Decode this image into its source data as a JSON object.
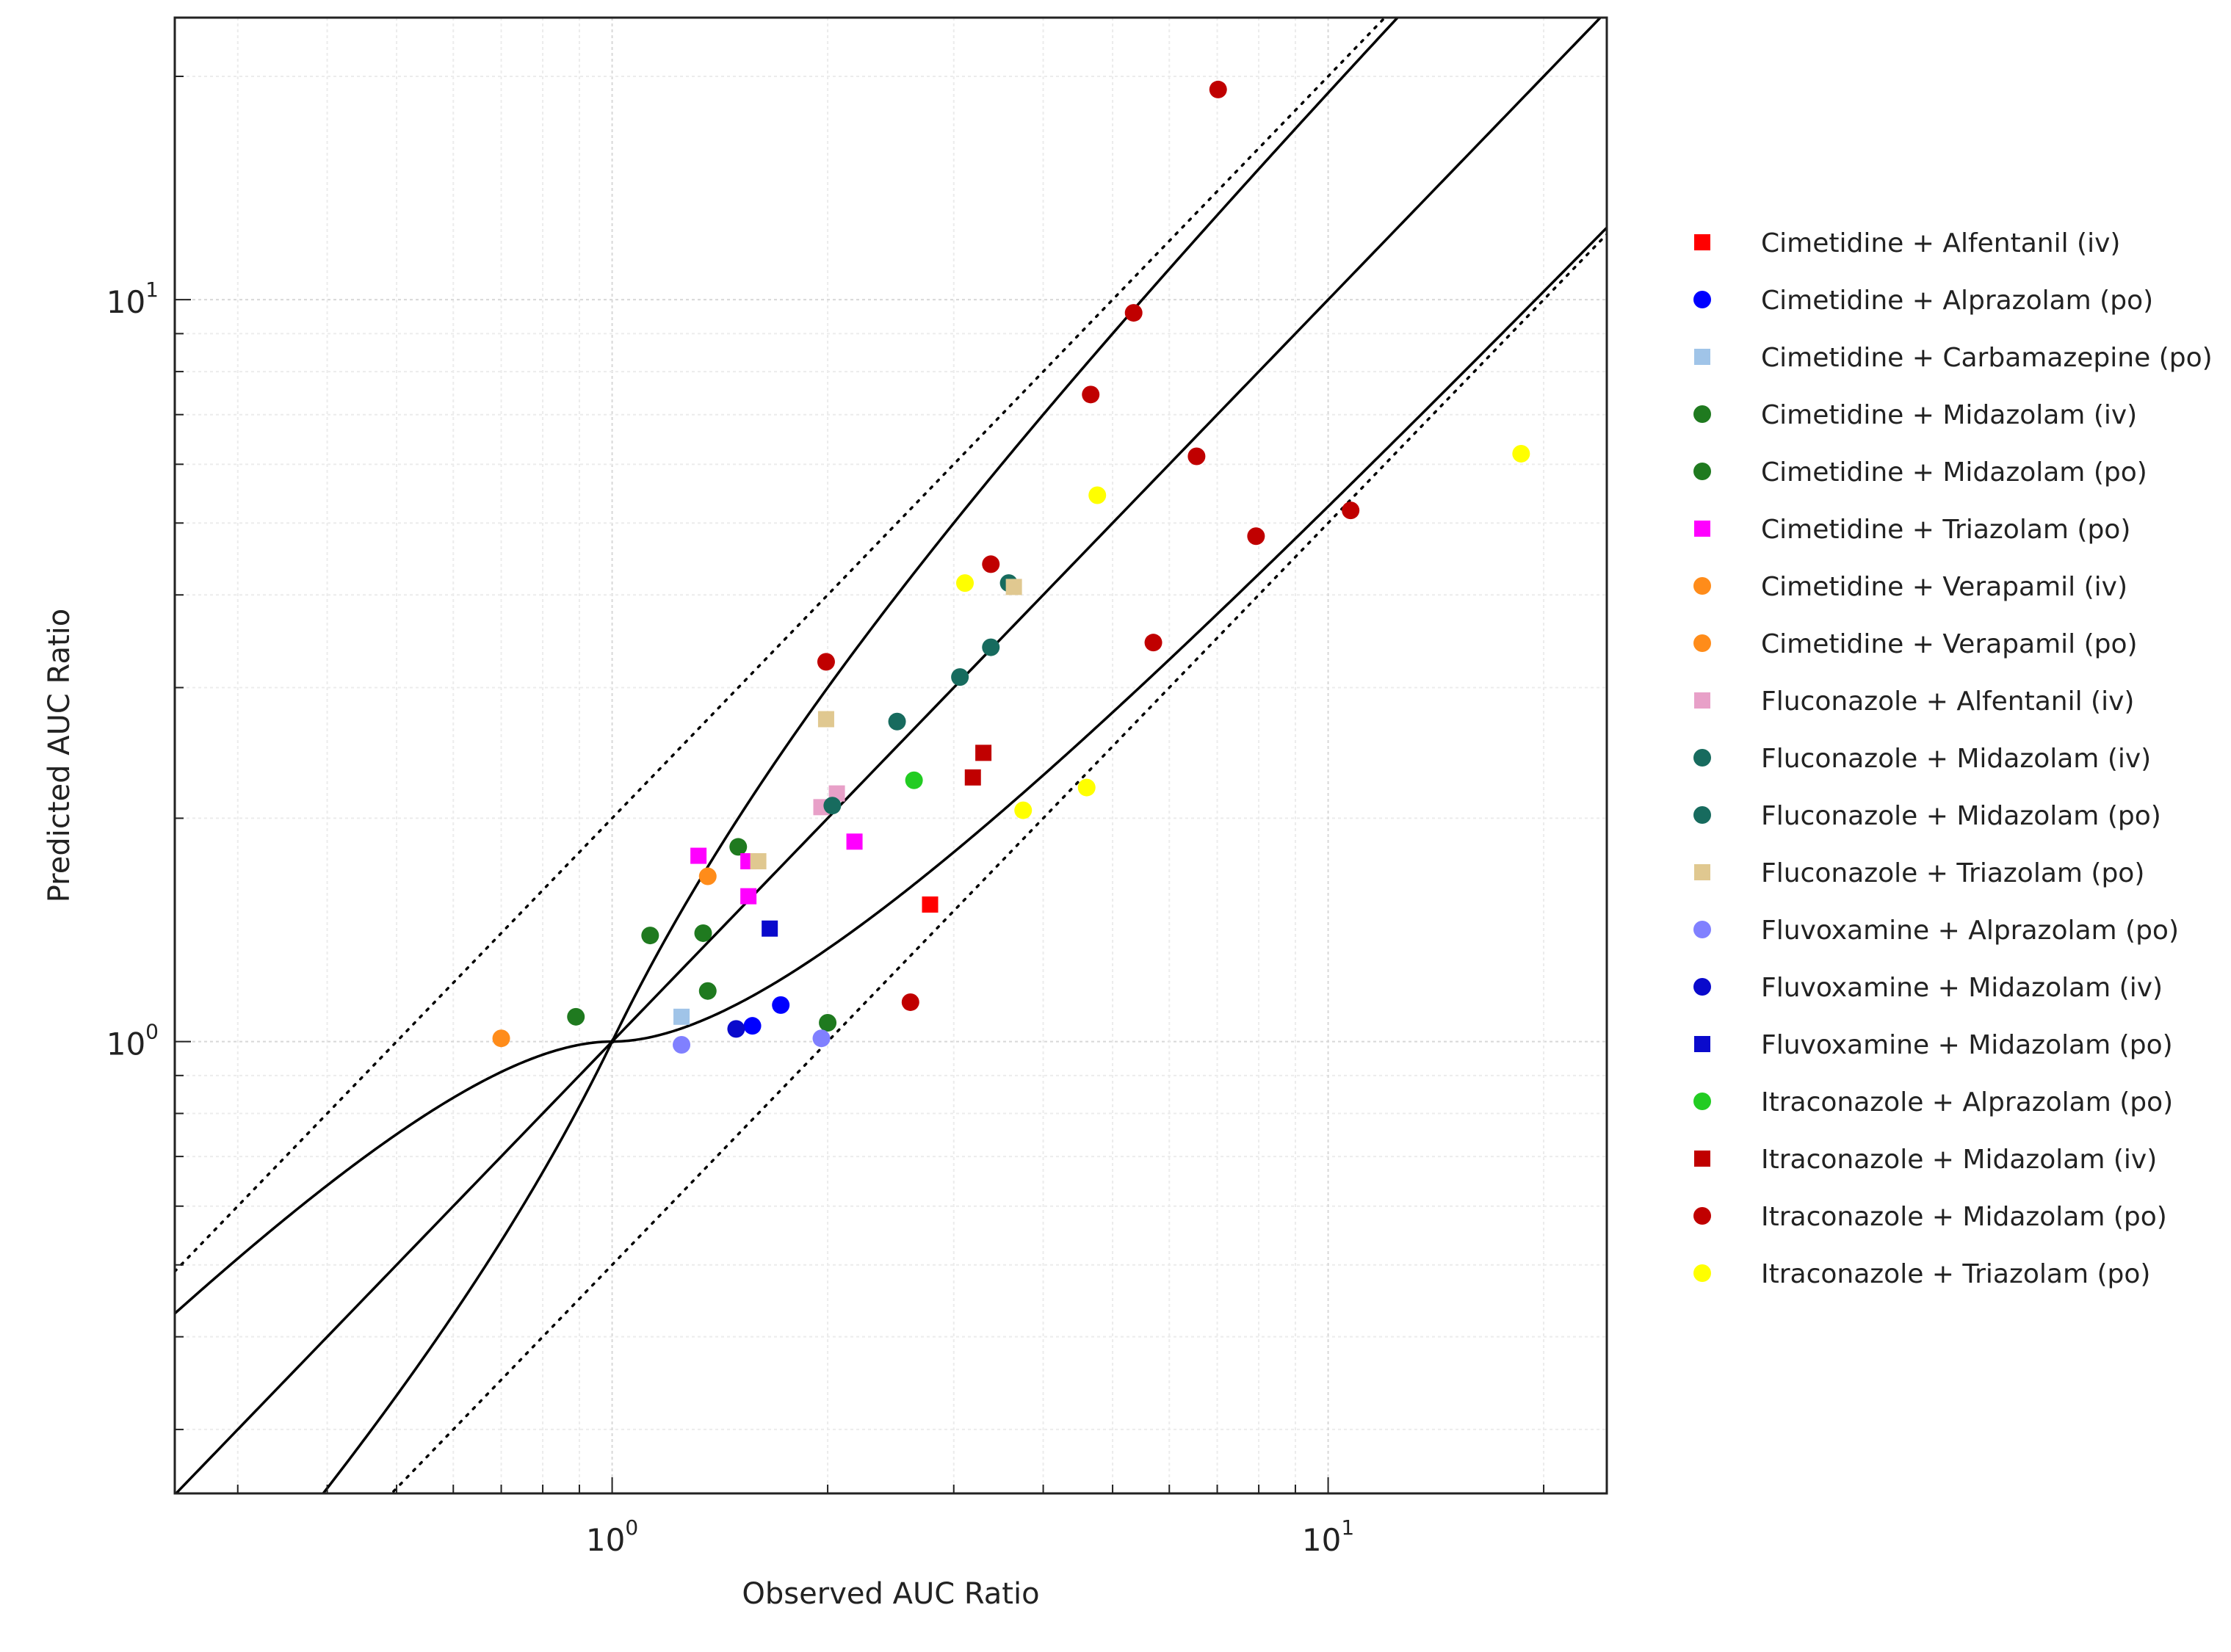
{
  "chart_data": {
    "type": "scatter",
    "title": "",
    "xlabel": "Observed AUC Ratio",
    "ylabel": "Predicted AUC Ratio",
    "xscale": "log",
    "yscale": "log",
    "xlim": [
      0.245,
      24.5
    ],
    "ylim": [
      0.246,
      24.0
    ],
    "grid": true,
    "legend_position": "right",
    "x_tick_labels": [
      {
        "base": "10",
        "exp": "0"
      },
      {
        "base": "10",
        "exp": "1"
      }
    ],
    "y_tick_labels": [
      {
        "base": "10",
        "exp": "0"
      },
      {
        "base": "10",
        "exp": "1"
      }
    ],
    "reference_lines": [
      {
        "name": "line of identity",
        "style": "solid"
      },
      {
        "name": "2-fold upper",
        "style": "dotted"
      },
      {
        "name": "2-fold lower",
        "style": "dotted"
      },
      {
        "name": "Guest limit upper",
        "style": "solid"
      },
      {
        "name": "Guest limit lower",
        "style": "solid"
      }
    ],
    "series": [
      {
        "name": "Cimetidine + Alfentanil (iv)",
        "color": "#ff0000",
        "marker": "square",
        "points": [
          [
            2.78,
            1.53
          ]
        ]
      },
      {
        "name": "Cimetidine + Alprazolam (po)",
        "color": "#0000ff",
        "marker": "circle",
        "points": [
          [
            1.57,
            1.05
          ],
          [
            1.72,
            1.12
          ]
        ]
      },
      {
        "name": "Cimetidine + Carbamazepine (po)",
        "color": "#a0c4e8",
        "marker": "square",
        "points": [
          [
            1.25,
            1.08
          ]
        ]
      },
      {
        "name": "Cimetidine + Midazolam (iv)",
        "color": "#1f7a1f",
        "marker": "circle",
        "points": [
          [
            0.89,
            1.08
          ],
          [
            1.13,
            1.39
          ],
          [
            1.34,
            1.4
          ],
          [
            1.5,
            1.83
          ],
          [
            1.36,
            1.17
          ],
          [
            2.0,
            1.06
          ]
        ]
      },
      {
        "name": "Cimetidine + Midazolam (po)",
        "color": "#1f7a1f",
        "marker": "circle",
        "points": []
      },
      {
        "name": "Cimetidine + Triazolam (po)",
        "color": "#ff00ff",
        "marker": "square",
        "points": [
          [
            1.32,
            1.78
          ],
          [
            1.55,
            1.75
          ],
          [
            1.55,
            1.57
          ],
          [
            2.18,
            1.86
          ]
        ]
      },
      {
        "name": "Cimetidine + Verapamil (iv)",
        "color": "#ff8c1a",
        "marker": "circle",
        "points": [
          [
            0.7,
            1.01
          ],
          [
            1.36,
            1.67
          ]
        ]
      },
      {
        "name": "Cimetidine + Verapamil (po)",
        "color": "#ff8c1a",
        "marker": "circle",
        "points": []
      },
      {
        "name": "Fluconazole + Alfentanil (iv)",
        "color": "#e8a0c8",
        "marker": "square",
        "points": [
          [
            1.96,
            2.07
          ],
          [
            2.06,
            2.16
          ]
        ]
      },
      {
        "name": "Fluconazole + Midazolam (iv)",
        "color": "#176b5e",
        "marker": "circle",
        "points": [
          [
            2.03,
            2.08
          ],
          [
            2.5,
            2.7
          ],
          [
            3.06,
            3.1
          ],
          [
            3.38,
            3.4
          ],
          [
            3.58,
            4.15
          ]
        ]
      },
      {
        "name": "Fluconazole + Midazolam (po)",
        "color": "#176b5e",
        "marker": "circle",
        "points": []
      },
      {
        "name": "Fluconazole + Triazolam (po)",
        "color": "#e0c890",
        "marker": "square",
        "points": [
          [
            1.99,
            2.72
          ],
          [
            1.6,
            1.75
          ],
          [
            3.64,
            4.1
          ]
        ]
      },
      {
        "name": "Fluvoxamine + Alprazolam (po)",
        "color": "#8080ff",
        "marker": "circle",
        "points": [
          [
            1.25,
            0.99
          ],
          [
            1.96,
            1.01
          ]
        ]
      },
      {
        "name": "Fluvoxamine + Midazolam (iv)",
        "color": "#0a0acc",
        "marker": "circle",
        "points": [
          [
            1.49,
            1.04
          ]
        ]
      },
      {
        "name": "Fluvoxamine + Midazolam (po)",
        "color": "#0a0acc",
        "marker": "square",
        "points": [
          [
            1.66,
            1.42
          ]
        ]
      },
      {
        "name": "Itraconazole + Alprazolam (po)",
        "color": "#22cc22",
        "marker": "circle",
        "points": [
          [
            2.64,
            2.25
          ]
        ]
      },
      {
        "name": "Itraconazole + Midazolam (iv)",
        "color": "#c00000",
        "marker": "square",
        "points": [
          [
            3.19,
            2.27
          ],
          [
            3.3,
            2.45
          ]
        ]
      },
      {
        "name": "Itraconazole + Midazolam (po)",
        "color": "#c00000",
        "marker": "circle",
        "points": [
          [
            1.99,
            3.25
          ],
          [
            2.61,
            1.13
          ],
          [
            3.38,
            4.4
          ],
          [
            4.66,
            7.45
          ],
          [
            5.35,
            9.6
          ],
          [
            5.7,
            3.45
          ],
          [
            6.55,
            6.15
          ],
          [
            7.02,
            19.2
          ],
          [
            7.93,
            4.8
          ],
          [
            10.75,
            5.2
          ]
        ]
      },
      {
        "name": "Itraconazole + Triazolam (po)",
        "color": "#ffff00",
        "marker": "circle",
        "points": [
          [
            3.11,
            4.15
          ],
          [
            4.76,
            5.45
          ],
          [
            3.75,
            2.05
          ],
          [
            4.6,
            2.2
          ],
          [
            18.6,
            6.2
          ]
        ]
      }
    ]
  }
}
